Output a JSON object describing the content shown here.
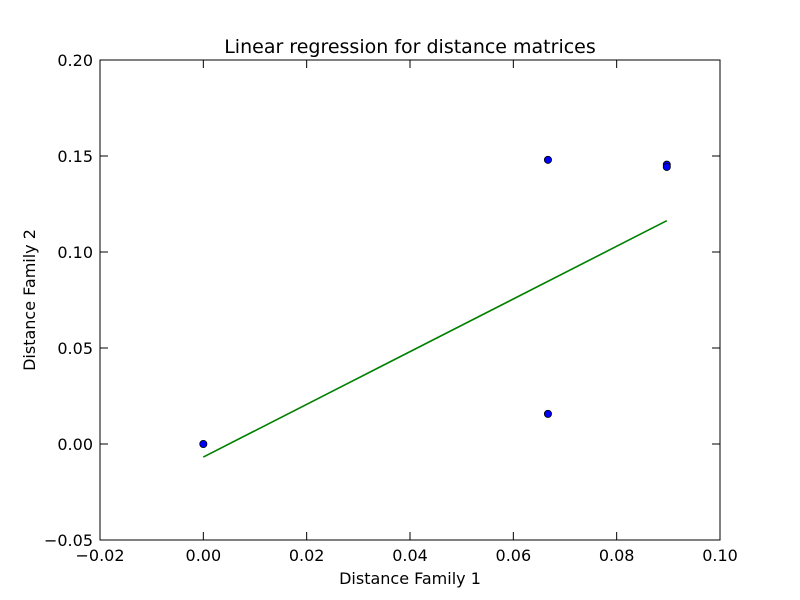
{
  "chart_data": {
    "type": "scatter",
    "title": "Linear regression for distance matrices",
    "xlabel": "Distance Family 1",
    "ylabel": "Distance Family 2",
    "xlim": [
      -0.02,
      0.1
    ],
    "ylim": [
      -0.05,
      0.2
    ],
    "xticks": [
      -0.02,
      0.0,
      0.02,
      0.04,
      0.06,
      0.08,
      0.1
    ],
    "xtick_labels": [
      "−0.02",
      "0.00",
      "0.02",
      "0.04",
      "0.06",
      "0.08",
      "0.10"
    ],
    "yticks": [
      -0.05,
      0.0,
      0.05,
      0.1,
      0.15,
      0.2
    ],
    "ytick_labels": [
      "−0.05",
      "0.00",
      "0.05",
      "0.10",
      "0.15",
      "0.20"
    ],
    "grid": false,
    "series": [
      {
        "type": "scatter",
        "color": "#0000ff",
        "points": [
          {
            "x": 0.0,
            "y": 0.0
          },
          {
            "x": 0.0667,
            "y": 0.148
          },
          {
            "x": 0.0667,
            "y": 0.0157
          },
          {
            "x": 0.0897,
            "y": 0.1455
          },
          {
            "x": 0.0897,
            "y": 0.1443
          }
        ]
      },
      {
        "type": "line",
        "color": "#008000",
        "points": [
          {
            "x": 0.0,
            "y": -0.0068
          },
          {
            "x": 0.0897,
            "y": 0.1163
          }
        ]
      }
    ]
  }
}
